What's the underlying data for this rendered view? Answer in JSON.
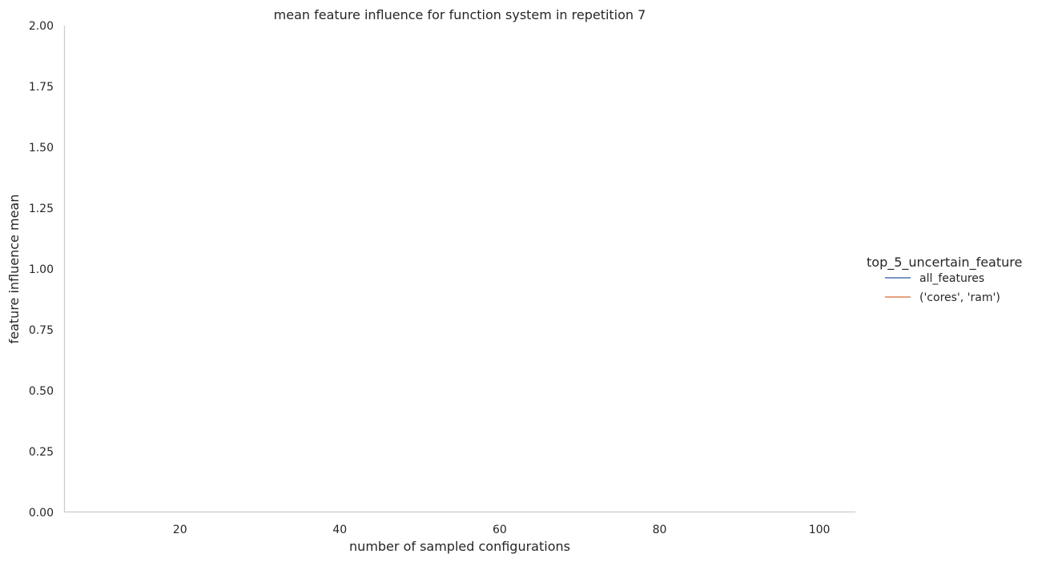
{
  "chart_data": {
    "type": "line",
    "title": "mean feature influence for function system in repetition 7",
    "xlabel": "number of sampled configurations",
    "ylabel": "feature influence mean",
    "xlim": [
      5.5,
      104.5
    ],
    "ylim": [
      0,
      2
    ],
    "xticks": [
      20,
      40,
      60,
      80,
      100
    ],
    "yticks": [
      "0.00",
      "0.25",
      "0.50",
      "0.75",
      "1.00",
      "1.25",
      "1.50",
      "1.75",
      "2.00"
    ],
    "grid": false,
    "legend": {
      "title": "top_5_uncertain_feature",
      "position": "right"
    },
    "series": [
      {
        "name": "all_features",
        "color": "#4c72b0",
        "x": [],
        "y": []
      },
      {
        "name": "('cores', 'ram')",
        "color": "#dd8452",
        "x": [],
        "y": []
      }
    ]
  }
}
